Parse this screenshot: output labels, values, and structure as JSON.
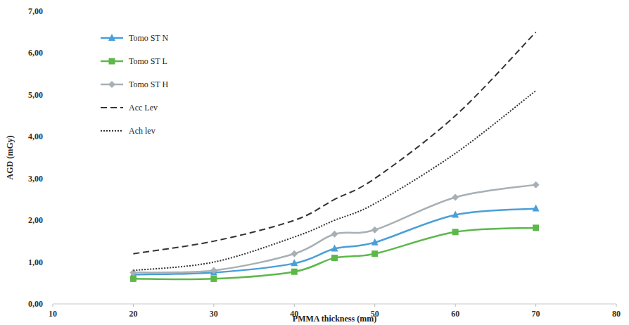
{
  "chart_data": {
    "type": "line",
    "x_label": "PMMA thickness (mm)",
    "y_label": "AGD (mGy)",
    "x": [
      20,
      30,
      40,
      45,
      50,
      60,
      70
    ],
    "xlim": [
      10,
      80
    ],
    "xticks": [
      10,
      20,
      30,
      40,
      50,
      60,
      70,
      80
    ],
    "ylim": [
      0,
      7
    ],
    "yticks": [
      {
        "value": 0,
        "label": "0,00"
      },
      {
        "value": 1,
        "label": "1,00"
      },
      {
        "value": 2,
        "label": "2,00"
      },
      {
        "value": 3,
        "label": "3,00"
      },
      {
        "value": 4,
        "label": "4,00"
      },
      {
        "value": 5,
        "label": "5,00"
      },
      {
        "value": 6,
        "label": "6,00"
      },
      {
        "value": 7,
        "label": "7,00"
      }
    ],
    "grid": false,
    "legend": "top-left",
    "series": [
      {
        "name": "Tomo ST N",
        "color": "#4a9fd8",
        "marker": "triangle",
        "line_style": "solid",
        "values": [
          0.7,
          0.75,
          0.97,
          1.32,
          1.47,
          2.13,
          2.28
        ]
      },
      {
        "name": "Tomo ST L",
        "color": "#5cb84a",
        "marker": "square",
        "line_style": "solid",
        "values": [
          0.6,
          0.6,
          0.77,
          1.1,
          1.2,
          1.72,
          1.82
        ]
      },
      {
        "name": "Tomo ST H",
        "color": "#a8b0b5",
        "marker": "diamond",
        "line_style": "solid",
        "values": [
          0.75,
          0.8,
          1.2,
          1.67,
          1.77,
          2.55,
          2.85
        ]
      },
      {
        "name": "Acc Lev",
        "color": "#333333",
        "marker": "none",
        "line_style": "dashed",
        "values": [
          1.2,
          1.5,
          2.0,
          2.5,
          3.0,
          4.5,
          6.5
        ]
      },
      {
        "name": "Ach lev",
        "color": "#333333",
        "marker": "none",
        "line_style": "dotted",
        "values": [
          0.8,
          1.0,
          1.6,
          2.0,
          2.4,
          3.6,
          5.1
        ]
      }
    ]
  }
}
